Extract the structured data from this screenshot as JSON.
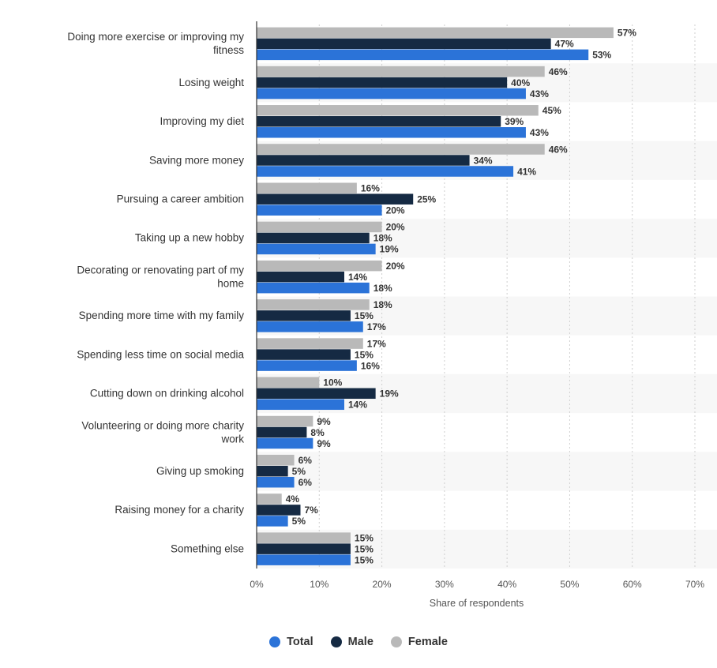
{
  "chart_data": {
    "type": "bar",
    "orientation": "horizontal",
    "categories": [
      "Doing more exercise or improving my fitness",
      "Losing weight",
      "Improving my diet",
      "Saving more money",
      "Pursuing a career ambition",
      "Taking up a new hobby",
      "Decorating or renovating part of my home",
      "Spending more time with my family",
      "Spending less time on social media",
      "Cutting down on drinking alcohol",
      "Volunteering or doing more charity work",
      "Giving up smoking",
      "Raising money for a charity",
      "Something else"
    ],
    "series": [
      {
        "name": "Female",
        "color": "#b9b9b9",
        "values": [
          57,
          46,
          45,
          46,
          16,
          20,
          20,
          18,
          17,
          10,
          9,
          6,
          4,
          15
        ]
      },
      {
        "name": "Male",
        "color": "#152a43",
        "values": [
          47,
          40,
          39,
          34,
          25,
          18,
          14,
          15,
          15,
          19,
          8,
          5,
          7,
          15
        ]
      },
      {
        "name": "Total",
        "color": "#2b73d8",
        "values": [
          53,
          43,
          43,
          41,
          20,
          19,
          18,
          17,
          16,
          14,
          9,
          6,
          5,
          15
        ]
      }
    ],
    "value_suffix": "%",
    "xlabel": "Share of respondents",
    "ylabel": "",
    "xlim": [
      0,
      70
    ],
    "xticks": [
      "0%",
      "10%",
      "20%",
      "30%",
      "40%",
      "50%",
      "60%",
      "70%"
    ],
    "grid": true,
    "legend_position": "bottom-center",
    "legend": [
      {
        "name": "Total",
        "color": "#2b73d8"
      },
      {
        "name": "Male",
        "color": "#152a43"
      },
      {
        "name": "Female",
        "color": "#b9b9b9"
      }
    ]
  }
}
